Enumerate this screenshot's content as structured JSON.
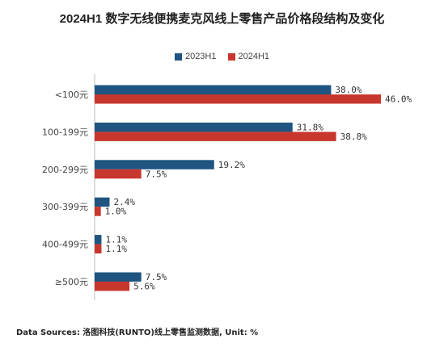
{
  "chart_data": {
    "type": "bar",
    "orientation": "horizontal",
    "title": "2024H1 数字无线便携麦克风线上零售产品价格段结构及变化",
    "categories": [
      "<100元",
      "100-199元",
      "200-299元",
      "300-399元",
      "400-499元",
      "≥500元"
    ],
    "series": [
      {
        "name": "2023H1",
        "color": "#1f5580",
        "values": [
          38.0,
          31.8,
          19.2,
          2.4,
          1.1,
          7.5
        ]
      },
      {
        "name": "2024H1",
        "color": "#c8372d",
        "values": [
          46.0,
          38.8,
          7.5,
          1.0,
          1.1,
          5.6
        ]
      }
    ],
    "value_labels": [
      [
        "38.0%",
        "31.8%",
        "19.2%",
        "2.4%",
        "1.1%",
        "7.5%"
      ],
      [
        "46.0%",
        "38.8%",
        "7.5%",
        "1.0%",
        "1.1%",
        "5.6%"
      ]
    ],
    "xlim": [
      0,
      46
    ],
    "legend_position": "top-center",
    "grid": false
  },
  "source_text": "Data Sources: 洛图科技(RUNTO)线上零售监测数据, Unit: %"
}
